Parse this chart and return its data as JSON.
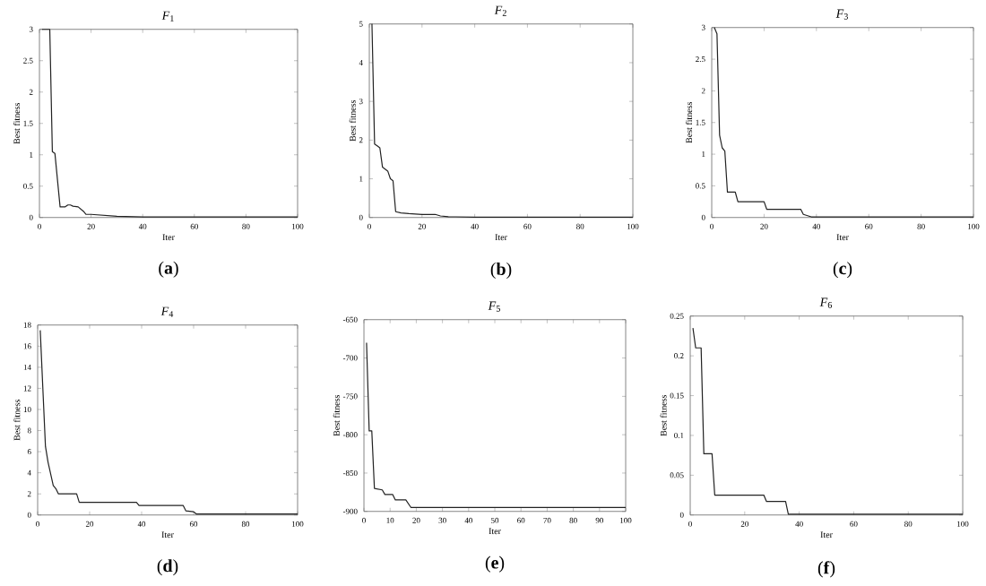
{
  "chart_data": [
    {
      "type": "line",
      "title": "*F*$_{1}$",
      "xlabel": "Iter",
      "ylabel": "Best fitness",
      "annotations": [
        "(**a**)"
      ],
      "xlim": [
        0,
        100
      ],
      "xticks": [
        0,
        20,
        40,
        60,
        80,
        100
      ],
      "ylim": [
        0,
        3
      ],
      "yticks": [
        0,
        0.5,
        1,
        1.5,
        2,
        2.5,
        3
      ],
      "x": [
        1,
        4,
        5,
        6,
        8,
        10,
        11,
        12,
        13,
        15,
        17,
        18,
        20,
        30,
        40,
        60,
        100
      ],
      "series": [
        {
          "color": "#222222",
          "values": [
            3,
            3,
            1.05,
            1.02,
            0.17,
            0.17,
            0.2,
            0.2,
            0.18,
            0.17,
            0.1,
            0.05,
            0.05,
            0.02,
            0.01,
            0.01,
            0.01
          ]
        }
      ]
    },
    {
      "type": "line",
      "title": "*F*$_{2}$",
      "xlabel": "Iter",
      "ylabel": "Best fitness",
      "annotations": [
        "(**b**)"
      ],
      "xlim": [
        0,
        100
      ],
      "xticks": [
        0,
        20,
        40,
        60,
        80,
        100
      ],
      "ylim": [
        0,
        5
      ],
      "yticks": [
        0,
        1,
        2,
        3,
        4,
        5
      ],
      "x": [
        1,
        2,
        3,
        4,
        5,
        6,
        7,
        8,
        9,
        10,
        12,
        15,
        20,
        25,
        27,
        30,
        40,
        100
      ],
      "series": [
        {
          "color": "#222222",
          "values": [
            5,
            1.9,
            1.85,
            1.8,
            1.3,
            1.25,
            1.2,
            1.0,
            0.95,
            0.15,
            0.12,
            0.1,
            0.08,
            0.08,
            0.04,
            0.02,
            0.01,
            0.01
          ]
        }
      ]
    },
    {
      "type": "line",
      "title": "*F*$_{3}$",
      "xlabel": "Iter",
      "ylabel": "Best fitness",
      "annotations": [
        "(**c**)"
      ],
      "xlim": [
        0,
        100
      ],
      "xticks": [
        0,
        20,
        40,
        60,
        80,
        100
      ],
      "ylim": [
        0,
        3
      ],
      "yticks": [
        0,
        0.5,
        1,
        1.5,
        2,
        2.5,
        3
      ],
      "x": [
        1,
        2,
        3,
        4,
        5,
        6,
        9,
        10,
        20,
        21,
        34,
        35,
        38,
        100
      ],
      "series": [
        {
          "color": "#222222",
          "values": [
            3,
            2.9,
            1.3,
            1.1,
            1.05,
            0.4,
            0.4,
            0.25,
            0.25,
            0.13,
            0.13,
            0.05,
            0.01,
            0.01
          ]
        }
      ]
    },
    {
      "type": "line",
      "title": "*F*$_{4}$",
      "xlabel": "Iter",
      "ylabel": "Best fitness",
      "annotations": [
        "(**d**)"
      ],
      "xlim": [
        0,
        100
      ],
      "xticks": [
        0,
        20,
        40,
        60,
        80,
        100
      ],
      "ylim": [
        0,
        18
      ],
      "yticks": [
        0,
        2,
        4,
        6,
        8,
        10,
        12,
        14,
        16,
        18
      ],
      "x": [
        1,
        2,
        3,
        4,
        6,
        7,
        8,
        15,
        16,
        38,
        39,
        56,
        57,
        60,
        61,
        100
      ],
      "series": [
        {
          "color": "#222222",
          "values": [
            17.5,
            12,
            6.5,
            5,
            2.8,
            2.5,
            2,
            2,
            1.2,
            1.2,
            0.9,
            0.9,
            0.4,
            0.3,
            0.1,
            0.1
          ]
        }
      ]
    },
    {
      "type": "line",
      "title": "*F*$_{5}$",
      "xlabel": "Iter",
      "ylabel": "Best fitness",
      "annotations": [
        "(**e**)"
      ],
      "xlim": [
        0,
        100
      ],
      "xticks": [
        0,
        10,
        20,
        30,
        40,
        50,
        60,
        70,
        80,
        90,
        100
      ],
      "ylim": [
        -900,
        -650
      ],
      "yticks": [
        -900,
        -850,
        -800,
        -750,
        -700,
        -650
      ],
      "x": [
        1,
        2,
        3,
        4,
        7,
        8,
        11,
        12,
        16,
        18,
        100
      ],
      "series": [
        {
          "color": "#222222",
          "values": [
            -680,
            -795,
            -795,
            -870,
            -872,
            -878,
            -878,
            -885,
            -885,
            -895,
            -895
          ]
        }
      ]
    },
    {
      "type": "line",
      "title": "*F*$_{6}$",
      "xlabel": "Iter",
      "ylabel": "Best fitness",
      "annotations": [
        "(**f**)"
      ],
      "xlim": [
        0,
        100
      ],
      "xticks": [
        0,
        20,
        40,
        60,
        80,
        100
      ],
      "ylim": [
        0,
        0.25
      ],
      "yticks": [
        0,
        0.05,
        0.1,
        0.15,
        0.2,
        0.25
      ],
      "x": [
        1,
        2,
        4,
        5,
        8,
        9,
        27,
        28,
        35,
        36,
        100
      ],
      "series": [
        {
          "color": "#222222",
          "values": [
            0.235,
            0.21,
            0.21,
            0.077,
            0.077,
            0.025,
            0.025,
            0.017,
            0.017,
            0.001,
            0.001
          ]
        }
      ]
    }
  ]
}
